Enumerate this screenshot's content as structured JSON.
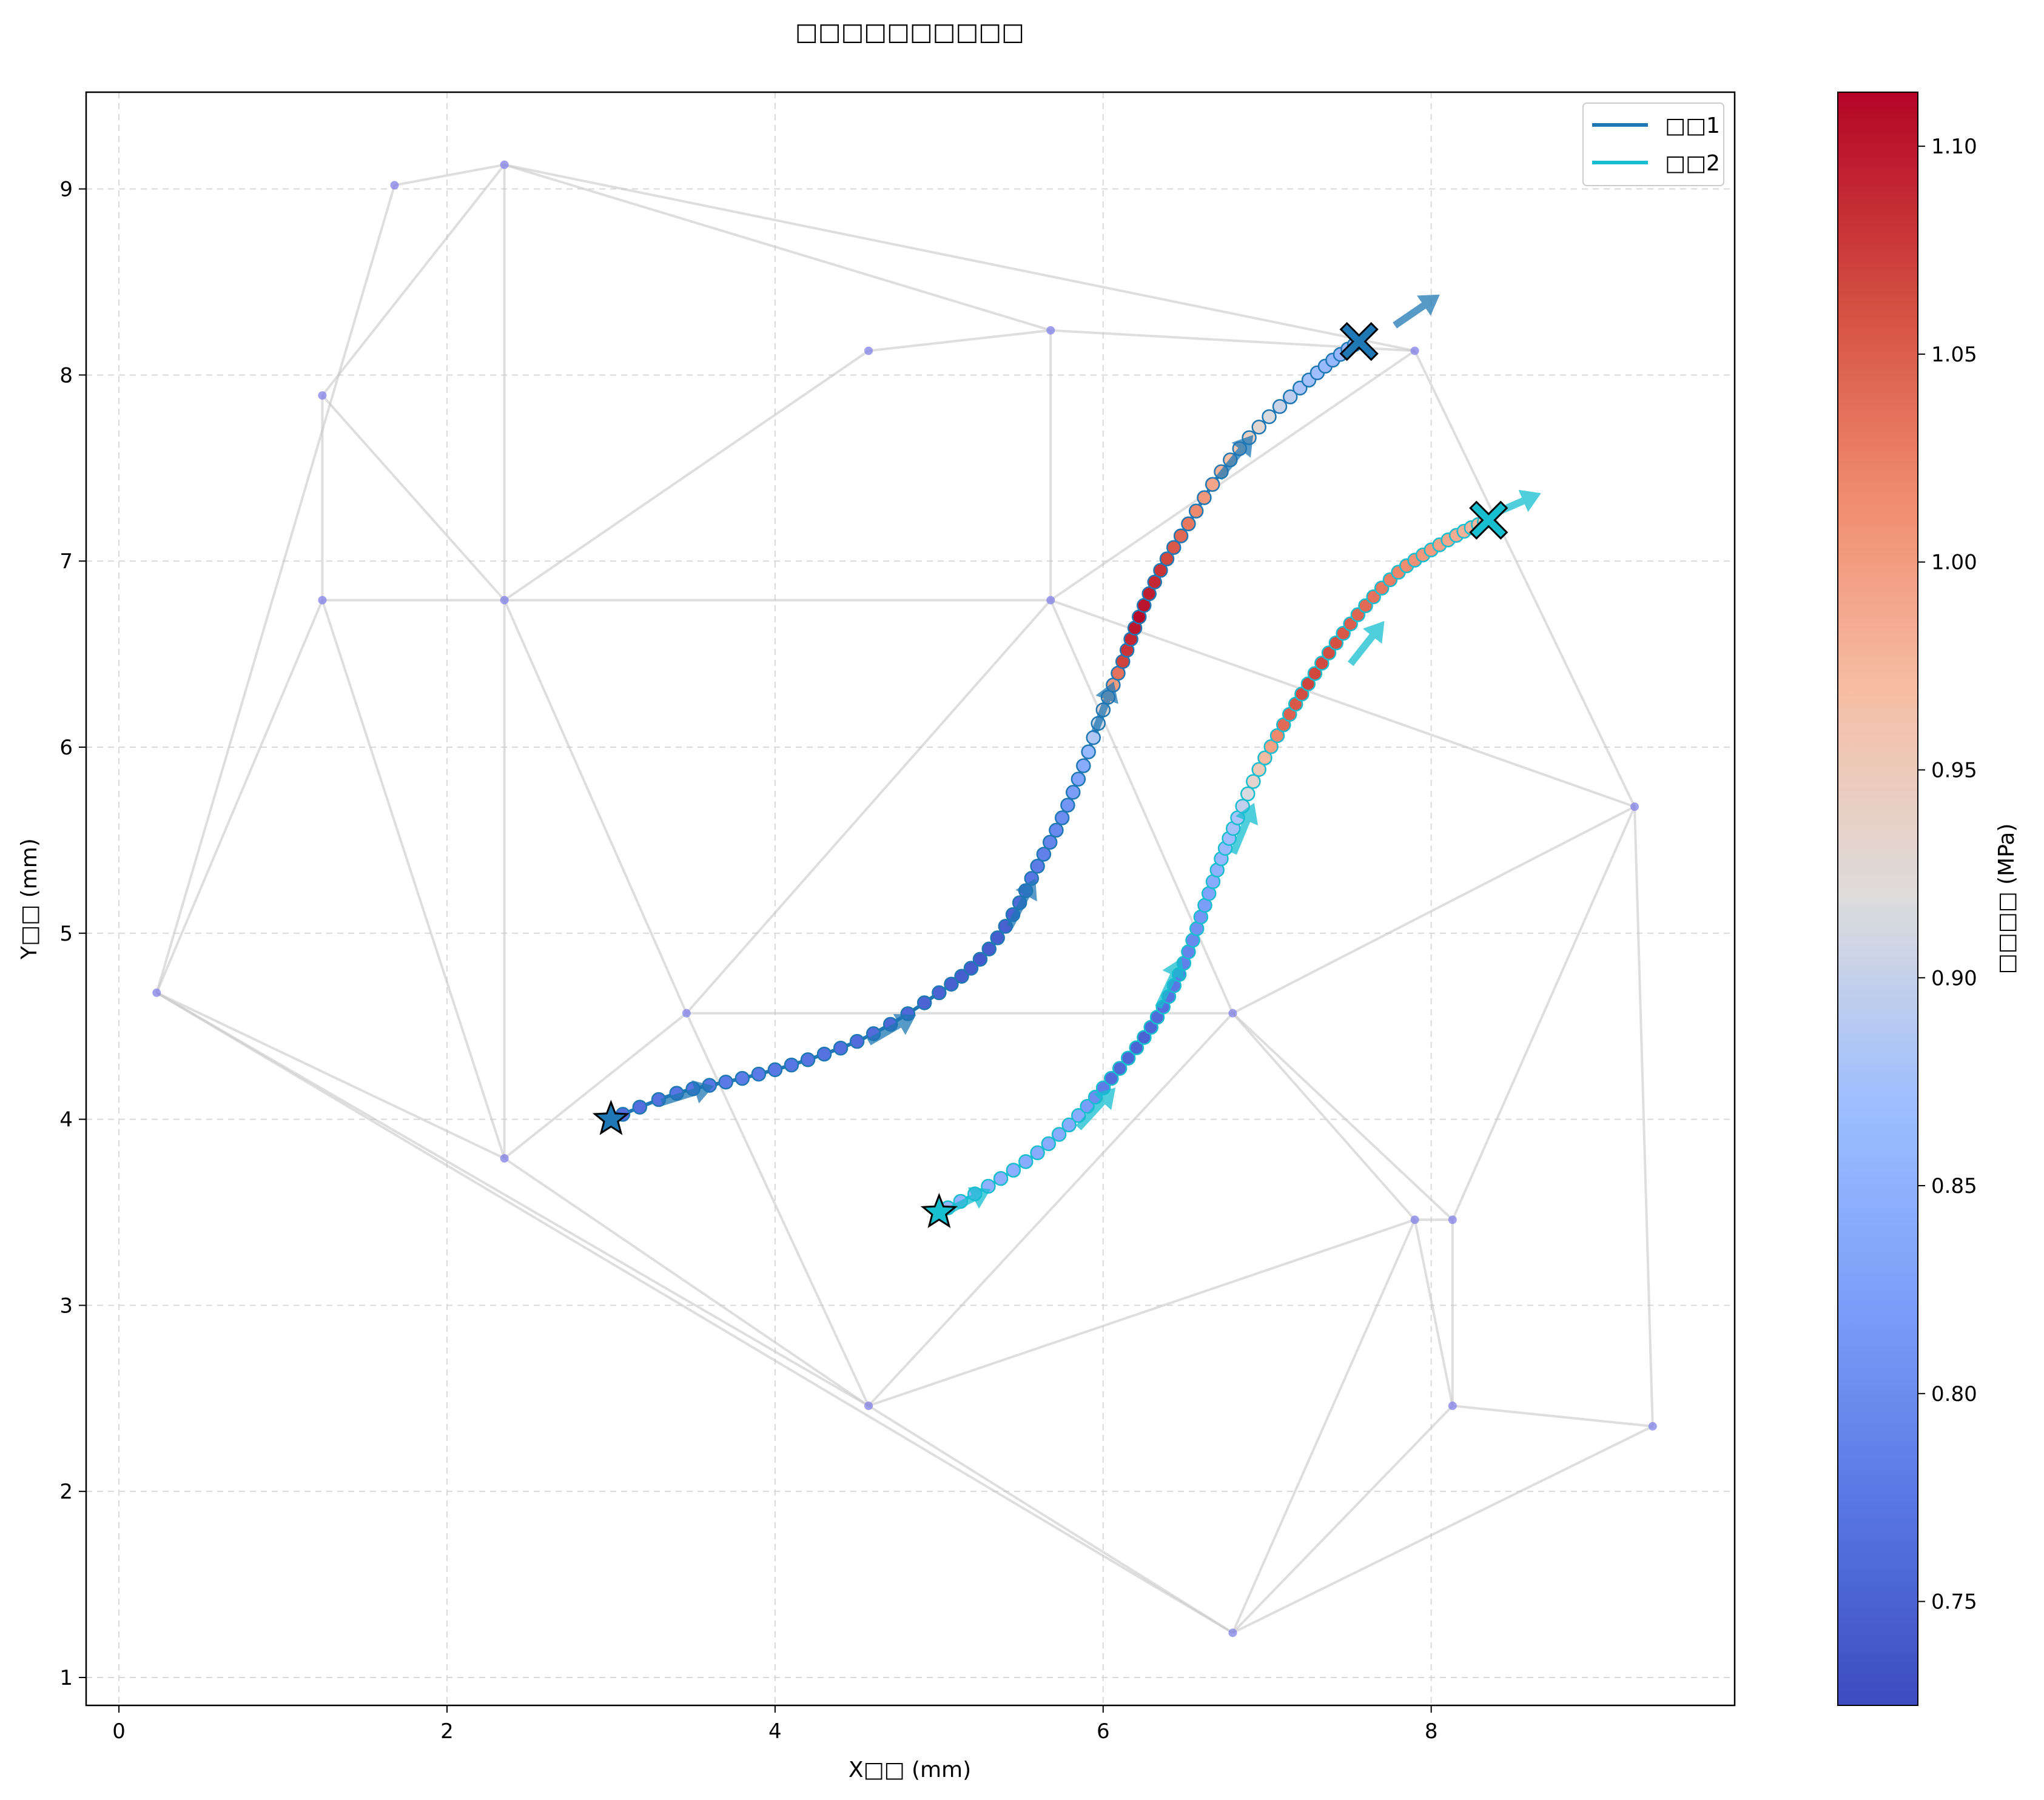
{
  "chart_data": {
    "type": "line",
    "title": "□□□□□□□□□□",
    "xlabel": "X□□ (mm)",
    "ylabel": "Y□□ (mm)",
    "xlim": [
      -0.2,
      9.85
    ],
    "ylim": [
      0.85,
      9.52
    ],
    "x_ticks": [
      0,
      2,
      4,
      6,
      8
    ],
    "y_ticks": [
      1,
      2,
      3,
      4,
      5,
      6,
      7,
      8,
      9
    ],
    "grid": true,
    "legend_position": "top-right",
    "colorbar": {
      "label": "□□□□ (MPa)",
      "range": [
        0.725,
        1.113
      ],
      "ticks": [
        0.75,
        0.8,
        0.85,
        0.9,
        0.95,
        1.0,
        1.05,
        1.1
      ],
      "colormap": "coolwarm"
    },
    "network": {
      "nodes": [
        [
          0.23,
          4.68
        ],
        [
          1.24,
          6.79
        ],
        [
          1.24,
          7.89
        ],
        [
          1.68,
          9.02
        ],
        [
          2.35,
          9.13
        ],
        [
          2.35,
          6.79
        ],
        [
          2.35,
          3.79
        ],
        [
          3.46,
          4.57
        ],
        [
          4.57,
          8.13
        ],
        [
          4.57,
          2.46
        ],
        [
          5.68,
          8.24
        ],
        [
          5.68,
          6.79
        ],
        [
          6.79,
          4.57
        ],
        [
          6.79,
          1.24
        ],
        [
          7.9,
          8.13
        ],
        [
          7.9,
          3.46
        ],
        [
          8.13,
          3.46
        ],
        [
          8.13,
          2.46
        ],
        [
          9.24,
          5.68
        ],
        [
          9.35,
          2.35
        ]
      ],
      "edges": [
        [
          0,
          1
        ],
        [
          0,
          3
        ],
        [
          0,
          6
        ],
        [
          0,
          9
        ],
        [
          0,
          13
        ],
        [
          1,
          2
        ],
        [
          1,
          5
        ],
        [
          1,
          6
        ],
        [
          2,
          4
        ],
        [
          2,
          5
        ],
        [
          3,
          4
        ],
        [
          4,
          5
        ],
        [
          4,
          10
        ],
        [
          4,
          14
        ],
        [
          5,
          6
        ],
        [
          5,
          8
        ],
        [
          5,
          11
        ],
        [
          5,
          7
        ],
        [
          6,
          7
        ],
        [
          6,
          9
        ],
        [
          7,
          9
        ],
        [
          7,
          12
        ],
        [
          7,
          11
        ],
        [
          8,
          10
        ],
        [
          10,
          11
        ],
        [
          10,
          14
        ],
        [
          11,
          14
        ],
        [
          11,
          12
        ],
        [
          11,
          18
        ],
        [
          9,
          12
        ],
        [
          9,
          15
        ],
        [
          12,
          18
        ],
        [
          12,
          15
        ],
        [
          12,
          16
        ],
        [
          15,
          16
        ],
        [
          15,
          17
        ],
        [
          16,
          17
        ],
        [
          16,
          18
        ],
        [
          13,
          15
        ],
        [
          13,
          17
        ],
        [
          13,
          19
        ],
        [
          17,
          19
        ],
        [
          18,
          19
        ],
        [
          14,
          18
        ],
        [
          9,
          13
        ]
      ]
    },
    "series": [
      {
        "name": "□□1",
        "color": "#1f77b4",
        "start": [
          3.0,
          4.0
        ],
        "end": [
          7.56,
          8.18
        ],
        "points": [
          [
            3.0,
            4.0
          ],
          [
            3.4,
            4.14
          ],
          [
            3.8,
            4.22
          ],
          [
            4.2,
            4.32
          ],
          [
            4.6,
            4.46
          ],
          [
            5.0,
            4.68
          ],
          [
            5.25,
            4.86
          ],
          [
            5.45,
            5.1
          ],
          [
            5.6,
            5.36
          ],
          [
            5.75,
            5.62
          ],
          [
            5.88,
            5.9
          ],
          [
            6.0,
            6.2
          ],
          [
            6.12,
            6.46
          ],
          [
            6.22,
            6.7
          ],
          [
            6.35,
            6.95
          ],
          [
            6.52,
            7.2
          ],
          [
            6.72,
            7.48
          ],
          [
            6.95,
            7.72
          ],
          [
            7.2,
            7.93
          ],
          [
            7.4,
            8.08
          ],
          [
            7.56,
            8.18
          ]
        ],
        "pressures": [
          0.76,
          0.77,
          0.78,
          0.77,
          0.76,
          0.75,
          0.74,
          0.75,
          0.78,
          0.8,
          0.84,
          0.93,
          1.07,
          1.11,
          1.08,
          1.03,
          0.98,
          0.93,
          0.88,
          0.86,
          0.85
        ],
        "arrows": [
          [
            3.45,
            4.13
          ],
          [
            4.7,
            4.48
          ],
          [
            5.5,
            5.15
          ],
          [
            6.0,
            6.2
          ],
          [
            6.8,
            7.55
          ],
          [
            7.9,
            8.34
          ]
        ]
      },
      {
        "name": "□□2",
        "color": "#17becf",
        "start": [
          5.0,
          3.5
        ],
        "end": [
          8.35,
          7.22
        ],
        "points": [
          [
            5.0,
            3.5
          ],
          [
            5.3,
            3.64
          ],
          [
            5.6,
            3.82
          ],
          [
            5.85,
            4.02
          ],
          [
            6.05,
            4.22
          ],
          [
            6.25,
            4.44
          ],
          [
            6.4,
            4.66
          ],
          [
            6.52,
            4.9
          ],
          [
            6.62,
            5.15
          ],
          [
            6.72,
            5.4
          ],
          [
            6.82,
            5.62
          ],
          [
            6.95,
            5.88
          ],
          [
            7.1,
            6.12
          ],
          [
            7.25,
            6.34
          ],
          [
            7.42,
            6.56
          ],
          [
            7.6,
            6.76
          ],
          [
            7.8,
            6.94
          ],
          [
            8.0,
            7.06
          ],
          [
            8.2,
            7.16
          ],
          [
            8.35,
            7.22
          ]
        ],
        "pressures": [
          0.86,
          0.85,
          0.84,
          0.84,
          0.76,
          0.75,
          0.77,
          0.79,
          0.82,
          0.86,
          0.88,
          0.95,
          1.04,
          1.07,
          1.06,
          1.04,
          1.02,
          1.0,
          0.98,
          0.97
        ],
        "arrows": [
          [
            5.15,
            3.55
          ],
          [
            5.95,
            4.05
          ],
          [
            6.4,
            4.72
          ],
          [
            6.85,
            5.55
          ],
          [
            7.6,
            6.55
          ],
          [
            8.5,
            7.3
          ]
        ]
      }
    ]
  }
}
